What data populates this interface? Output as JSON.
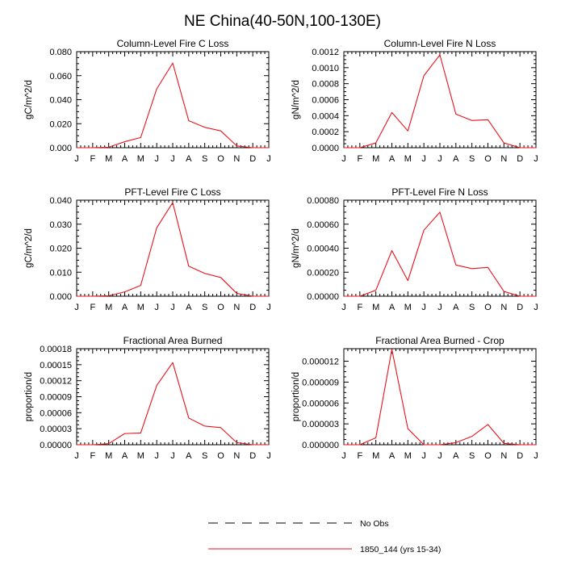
{
  "figure": {
    "title": "NE China(40-50N,100-130E)"
  },
  "legend": {
    "entries": [
      {
        "label": "No Obs",
        "style": "dashed",
        "color": "#000000"
      },
      {
        "label": "1850_144 (yrs 15-34)",
        "style": "solid",
        "color": "#e8121a"
      }
    ]
  },
  "chart_data": [
    {
      "type": "line",
      "title": "Column-Level Fire C Loss",
      "xlabel": "",
      "ylabel": "gC/m^2/d",
      "categories": [
        "J",
        "F",
        "M",
        "A",
        "M",
        "J",
        "J",
        "A",
        "S",
        "O",
        "N",
        "D",
        "J"
      ],
      "ylim": [
        0,
        0.08
      ],
      "yticks": [
        "0.000",
        "0.020",
        "0.040",
        "0.060",
        "0.080"
      ],
      "series": [
        {
          "name": "1850_144 (yrs 15-34)",
          "color": "#e8121a",
          "values": [
            0.0,
            0.0,
            0.0004,
            0.005,
            0.0085,
            0.049,
            0.0705,
            0.0225,
            0.017,
            0.014,
            0.0015,
            0.0,
            0.0
          ]
        }
      ]
    },
    {
      "type": "line",
      "title": "Column-Level Fire N Loss",
      "xlabel": "",
      "ylabel": "gN/m^2/d",
      "categories": [
        "J",
        "F",
        "M",
        "A",
        "M",
        "J",
        "J",
        "A",
        "S",
        "O",
        "N",
        "D",
        "J"
      ],
      "ylim": [
        0,
        0.0012
      ],
      "yticks": [
        "0.0000",
        "0.0002",
        "0.0004",
        "0.0006",
        "0.0008",
        "0.0010",
        "0.0012"
      ],
      "series": [
        {
          "name": "1850_144 (yrs 15-34)",
          "color": "#e8121a",
          "values": [
            0.0,
            0.0,
            6e-05,
            0.00044,
            0.00021,
            0.0009,
            0.00116,
            0.00042,
            0.00034,
            0.00035,
            6e-05,
            0.0,
            0.0
          ]
        }
      ]
    },
    {
      "type": "line",
      "title": "PFT-Level Fire C Loss",
      "xlabel": "",
      "ylabel": "gC/m^2/d",
      "categories": [
        "J",
        "F",
        "M",
        "A",
        "M",
        "J",
        "J",
        "A",
        "S",
        "O",
        "N",
        "D",
        "J"
      ],
      "ylim": [
        0,
        0.04
      ],
      "yticks": [
        "0.000",
        "0.010",
        "0.020",
        "0.030",
        "0.040"
      ],
      "series": [
        {
          "name": "1850_144 (yrs 15-34)",
          "color": "#e8121a",
          "values": [
            0.0,
            0.0,
            0.0002,
            0.0018,
            0.0045,
            0.0285,
            0.039,
            0.0125,
            0.0095,
            0.0078,
            0.0012,
            0.0,
            0.0
          ]
        }
      ]
    },
    {
      "type": "line",
      "title": "PFT-Level Fire N Loss",
      "xlabel": "",
      "ylabel": "gN/m^2/d",
      "categories": [
        "J",
        "F",
        "M",
        "A",
        "M",
        "J",
        "J",
        "A",
        "S",
        "O",
        "N",
        "D",
        "J"
      ],
      "ylim": [
        0,
        0.0008
      ],
      "yticks": [
        "0.00000",
        "0.00020",
        "0.00040",
        "0.00060",
        "0.00080"
      ],
      "series": [
        {
          "name": "1850_144 (yrs 15-34)",
          "color": "#e8121a",
          "values": [
            0.0,
            0.0,
            5e-05,
            0.00038,
            0.00013,
            0.00055,
            0.0007,
            0.00026,
            0.00023,
            0.00024,
            4e-05,
            0.0,
            0.0
          ]
        }
      ]
    },
    {
      "type": "line",
      "title": "Fractional Area Burned",
      "xlabel": "",
      "ylabel": "proportion/d",
      "categories": [
        "J",
        "F",
        "M",
        "A",
        "M",
        "J",
        "J",
        "A",
        "S",
        "O",
        "N",
        "D",
        "J"
      ],
      "ylim": [
        0,
        0.00018
      ],
      "yticks": [
        "0.00000",
        "0.00003",
        "0.00006",
        "0.00009",
        "0.00012",
        "0.00015",
        "0.00018"
      ],
      "series": [
        {
          "name": "1850_144 (yrs 15-34)",
          "color": "#e8121a",
          "values": [
            0.0,
            0.0,
            2e-06,
            2.1e-05,
            2.2e-05,
            0.000111,
            0.000154,
            5e-05,
            3.5e-05,
            3.2e-05,
            4e-06,
            0.0,
            0.0
          ]
        }
      ]
    },
    {
      "type": "line",
      "title": "Fractional Area Burned - Crop",
      "xlabel": "",
      "ylabel": "proportion/d",
      "categories": [
        "J",
        "F",
        "M",
        "A",
        "M",
        "J",
        "J",
        "A",
        "S",
        "O",
        "N",
        "D",
        "J"
      ],
      "ylim": [
        0,
        1.38e-05
      ],
      "yticks": [
        "0.000000",
        "0.000003",
        "0.000006",
        "0.000009",
        "0.000012"
      ],
      "yticks_values": [
        0.0,
        3e-06,
        6e-06,
        9e-06,
        1.2e-05
      ],
      "series": [
        {
          "name": "1850_144 (yrs 15-34)",
          "color": "#e8121a",
          "values": [
            0.0,
            0.0,
            1e-06,
            1.37e-05,
            2.3e-06,
            0.0,
            0.0,
            3e-07,
            1.2e-06,
            2.9e-06,
            2e-07,
            0.0,
            0.0
          ]
        }
      ]
    }
  ]
}
